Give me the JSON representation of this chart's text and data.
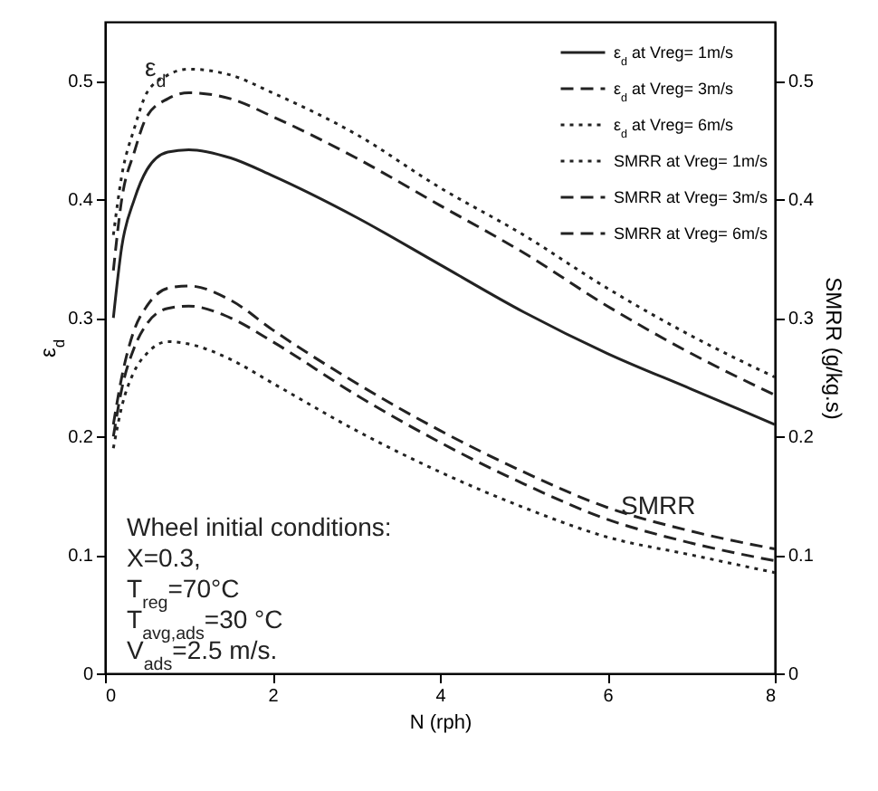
{
  "chart_data": {
    "type": "line",
    "xlabel": "N (rph)",
    "ylabel": "ε$_{d}$",
    "y2label": "SMRR (g/kg.s)",
    "xlim": [
      0,
      8
    ],
    "xticks": [
      0,
      2,
      4,
      6,
      8
    ],
    "ylim": [
      0,
      0.55
    ],
    "yticks": [
      0,
      0.1,
      0.2,
      0.3,
      0.4,
      0.5
    ],
    "y2lim": [
      0,
      0.55
    ],
    "y2ticks": [
      0,
      0.1,
      0.2,
      0.3,
      0.4,
      0.5
    ],
    "x": [
      0.1,
      0.2,
      0.35,
      0.5,
      0.75,
      1,
      1.5,
      2,
      3,
      4,
      5,
      6,
      7,
      8
    ],
    "legend": "top right",
    "grid": false,
    "series": [
      {
        "name": "ε$_{d}$ at Vreg= 1m/s",
        "color": "#222222",
        "line_style": "solid",
        "values": [
          0.3,
          0.36,
          0.4,
          0.425,
          0.44,
          0.442,
          0.435,
          0.42,
          0.385,
          0.345,
          0.305,
          0.27,
          0.24,
          0.21
        ]
      },
      {
        "name": "ε$_{d}$ at Vreg= 3m/s",
        "color": "#222222",
        "line_style": "dashed",
        "values": [
          0.34,
          0.4,
          0.44,
          0.47,
          0.485,
          0.49,
          0.485,
          0.47,
          0.435,
          0.395,
          0.355,
          0.31,
          0.27,
          0.235
        ]
      },
      {
        "name": "ε$_{d}$ at Vreg= 6m/s",
        "color": "#222222",
        "line_style": "dotted",
        "values": [
          0.37,
          0.42,
          0.46,
          0.49,
          0.505,
          0.51,
          0.505,
          0.49,
          0.455,
          0.41,
          0.37,
          0.325,
          0.285,
          0.25
        ]
      },
      {
        "name": "SMRR at Vreg= 1m/s",
        "color": "#222222",
        "line_style": "dotted",
        "axis": "y2",
        "values": [
          0.19,
          0.225,
          0.255,
          0.27,
          0.28,
          0.278,
          0.265,
          0.245,
          0.205,
          0.17,
          0.14,
          0.115,
          0.1,
          0.085
        ]
      },
      {
        "name": "SMRR at Vreg= 3m/s",
        "color": "#222222",
        "line_style": "dashed",
        "axis": "y2",
        "values": [
          0.2,
          0.24,
          0.275,
          0.295,
          0.308,
          0.31,
          0.3,
          0.28,
          0.235,
          0.195,
          0.16,
          0.13,
          0.11,
          0.095
        ]
      },
      {
        "name": "SMRR at Vreg= 6m/s",
        "color": "#222222",
        "line_style": "dashed",
        "axis": "y2",
        "values": [
          0.21,
          0.25,
          0.29,
          0.31,
          0.325,
          0.327,
          0.315,
          0.29,
          0.245,
          0.205,
          0.17,
          0.14,
          0.12,
          0.105
        ]
      }
    ],
    "annotations": [
      "ε$_{d}$",
      "SMRR",
      "Wheel initial conditions:",
      "X=0.3,",
      "T$_{reg}$=70°C",
      "T$_{avg,ads}$=30 °C",
      "V$_{ads}$=2.5 m/s."
    ]
  }
}
